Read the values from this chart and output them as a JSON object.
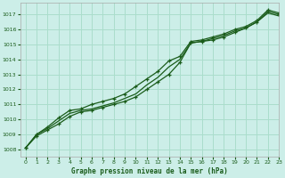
{
  "title": "Graphe pression niveau de la mer (hPa)",
  "bg_color": "#cceee8",
  "grid_color": "#aaddcc",
  "line_color": "#1a5c1a",
  "xlim": [
    -0.5,
    23
  ],
  "ylim": [
    1007.5,
    1017.8
  ],
  "yticks": [
    1008,
    1009,
    1010,
    1011,
    1012,
    1013,
    1014,
    1015,
    1016,
    1017
  ],
  "xticks": [
    0,
    1,
    2,
    3,
    4,
    5,
    6,
    7,
    8,
    9,
    10,
    11,
    12,
    13,
    14,
    15,
    16,
    17,
    18,
    19,
    20,
    21,
    22,
    23
  ],
  "line1_x": [
    0,
    1,
    2,
    3,
    4,
    5,
    6,
    7,
    8,
    9,
    10,
    11,
    12,
    13,
    14,
    15,
    16,
    17,
    18,
    19,
    20,
    21,
    22,
    23
  ],
  "line1_y": [
    1008.1,
    1008.9,
    1009.3,
    1009.7,
    1010.2,
    1010.5,
    1010.6,
    1010.8,
    1011.0,
    1011.2,
    1011.5,
    1012.0,
    1012.5,
    1013.0,
    1013.8,
    1015.1,
    1015.2,
    1015.3,
    1015.5,
    1015.8,
    1016.1,
    1016.5,
    1017.2,
    1017.0
  ],
  "line2_x": [
    0,
    1,
    2,
    3,
    4,
    5,
    6,
    7,
    8,
    9,
    10,
    11,
    12,
    13,
    14,
    15,
    16,
    17,
    18,
    19,
    20,
    21,
    22,
    23
  ],
  "line2_y": [
    1008.1,
    1009.0,
    1009.5,
    1010.1,
    1010.6,
    1010.7,
    1011.0,
    1011.2,
    1011.4,
    1011.7,
    1012.2,
    1012.7,
    1013.2,
    1013.9,
    1014.2,
    1015.2,
    1015.3,
    1015.5,
    1015.7,
    1016.0,
    1016.2,
    1016.6,
    1017.3,
    1017.1
  ],
  "line3_x": [
    0,
    1,
    2,
    3,
    4,
    5,
    6,
    7,
    8,
    9,
    10,
    11,
    12,
    13,
    14,
    15,
    16,
    17,
    18,
    19,
    20,
    21,
    22,
    23
  ],
  "line3_y": [
    1008.1,
    1009.0,
    1009.4,
    1009.9,
    1010.4,
    1010.6,
    1010.7,
    1010.9,
    1011.1,
    1011.4,
    1011.7,
    1012.3,
    1012.8,
    1013.5,
    1014.0,
    1015.1,
    1015.2,
    1015.4,
    1015.6,
    1015.9,
    1016.1,
    1016.5,
    1017.1,
    1016.9
  ]
}
